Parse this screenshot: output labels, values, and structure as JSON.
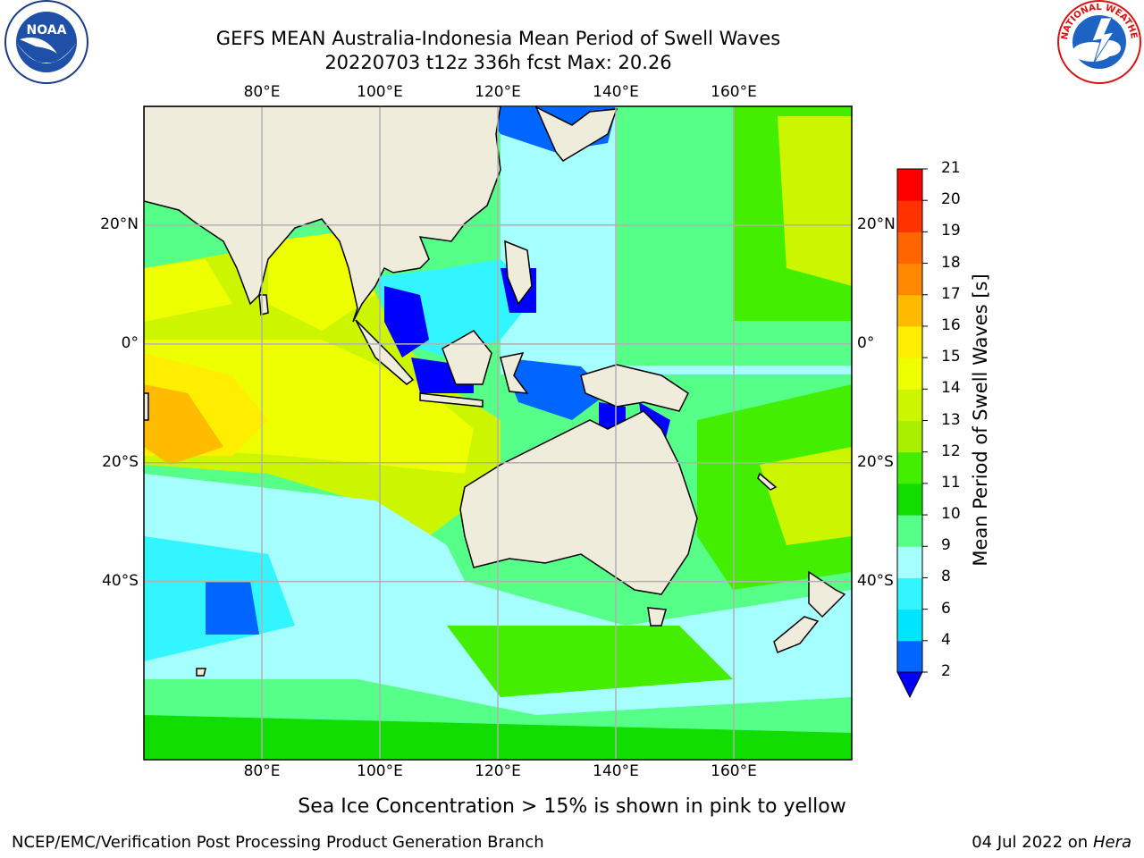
{
  "title": {
    "line1": "GEFS MEAN Australia-Indonesia Mean Period of Swell Waves",
    "line2": "20220703 t12z 336h fcst   Max: 20.26"
  },
  "logos": {
    "left": {
      "icon": "noaa-logo",
      "text": "NOAA"
    },
    "right": {
      "icon": "nws-logo",
      "text": "NATIONAL WEATHER SERVICE"
    }
  },
  "map": {
    "projection": "plate carree",
    "lon_range": [
      60,
      180
    ],
    "lat_range": [
      -70,
      40
    ],
    "lon_ticks": [
      "80°E",
      "100°E",
      "120°E",
      "140°E",
      "160°E"
    ],
    "lat_ticks": [
      "20°N",
      "0°",
      "20°S",
      "40°S"
    ],
    "grid": true,
    "land_color": "#efecdc"
  },
  "colorbar": {
    "title": "Mean Period of Swell Waves [s]",
    "ticks": [
      "2",
      "4",
      "6",
      "8",
      "9",
      "10",
      "11",
      "12",
      "13",
      "14",
      "15",
      "16",
      "17",
      "18",
      "19",
      "20",
      "21"
    ],
    "colors": [
      "#0066ff",
      "#00e5ff",
      "#33f5ff",
      "#a6ffff",
      "#55ff88",
      "#11dd00",
      "#44ee00",
      "#aaee00",
      "#ccf500",
      "#eeff00",
      "#ffee00",
      "#ffbb00",
      "#ff8800",
      "#ff6600",
      "#ff3300",
      "#ff0000"
    ],
    "under_color": "#0000ff",
    "extend": "min"
  },
  "notes": {
    "ice": "Sea Ice Concentration > 15% is shown in pink to yellow"
  },
  "footer": {
    "left": "NCEP/EMC/Verification Post Processing Product Generation Branch",
    "date": "04 Jul 2022 on ",
    "host": "Hera"
  }
}
